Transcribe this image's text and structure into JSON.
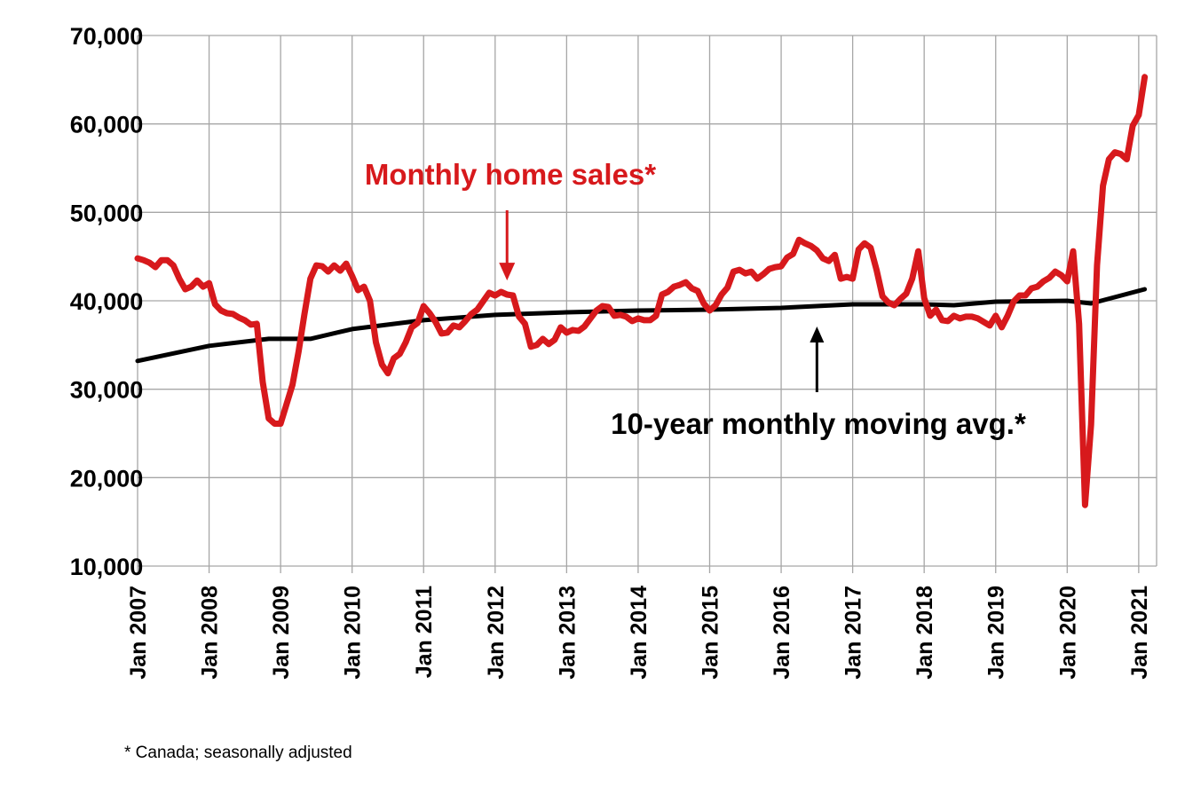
{
  "chart_data": {
    "type": "line",
    "title": "",
    "xlabel": "",
    "ylabel": "",
    "ylim": [
      10000,
      70000
    ],
    "yticks": [
      10000,
      20000,
      30000,
      40000,
      50000,
      60000,
      70000
    ],
    "ytick_labels": [
      "10,000",
      "20,000",
      "30,000",
      "40,000",
      "50,000",
      "60,000",
      "70,000"
    ],
    "xlim": [
      "2007-01",
      "2021-04"
    ],
    "xtick_labels": [
      "Jan 2007",
      "Jan 2008",
      "Jan 2009",
      "Jan 2010",
      "Jan 2011",
      "Jan 2012",
      "Jan 2013",
      "Jan 2014",
      "Jan 2015",
      "Jan 2016",
      "Jan 2017",
      "Jan 2018",
      "Jan 2019",
      "Jan 2020",
      "Jan 2021"
    ],
    "grid": true,
    "series": [
      {
        "name": "Monthly home sales*",
        "color": "#d7191c",
        "points": [
          [
            "2007-01",
            44800
          ],
          [
            "2007-02",
            44600
          ],
          [
            "2007-03",
            44300
          ],
          [
            "2007-04",
            43800
          ],
          [
            "2007-05",
            44600
          ],
          [
            "2007-06",
            44600
          ],
          [
            "2007-07",
            44000
          ],
          [
            "2007-08",
            42500
          ],
          [
            "2007-09",
            41300
          ],
          [
            "2007-10",
            41600
          ],
          [
            "2007-11",
            42300
          ],
          [
            "2007-12",
            41600
          ],
          [
            "2008-01",
            42000
          ],
          [
            "2008-02",
            39600
          ],
          [
            "2008-03",
            38900
          ],
          [
            "2008-04",
            38600
          ],
          [
            "2008-05",
            38500
          ],
          [
            "2008-06",
            38100
          ],
          [
            "2008-07",
            37800
          ],
          [
            "2008-08",
            37300
          ],
          [
            "2008-09",
            37400
          ],
          [
            "2008-10",
            30800
          ],
          [
            "2008-11",
            26700
          ],
          [
            "2008-12",
            26100
          ],
          [
            "2009-01",
            26100
          ],
          [
            "2009-02",
            28300
          ],
          [
            "2009-03",
            30500
          ],
          [
            "2009-04",
            34200
          ],
          [
            "2009-05",
            38500
          ],
          [
            "2009-06",
            42500
          ],
          [
            "2009-07",
            44000
          ],
          [
            "2009-08",
            43900
          ],
          [
            "2009-09",
            43300
          ],
          [
            "2009-10",
            44000
          ],
          [
            "2009-11",
            43400
          ],
          [
            "2009-12",
            44200
          ],
          [
            "2010-01",
            42800
          ],
          [
            "2010-02",
            41200
          ],
          [
            "2010-03",
            41600
          ],
          [
            "2010-04",
            40000
          ],
          [
            "2010-05",
            35300
          ],
          [
            "2010-06",
            32800
          ],
          [
            "2010-07",
            31800
          ],
          [
            "2010-08",
            33500
          ],
          [
            "2010-09",
            34000
          ],
          [
            "2010-10",
            35300
          ],
          [
            "2010-11",
            37000
          ],
          [
            "2010-12",
            37500
          ],
          [
            "2011-01",
            39400
          ],
          [
            "2011-02",
            38600
          ],
          [
            "2011-03",
            37600
          ],
          [
            "2011-04",
            36300
          ],
          [
            "2011-05",
            36400
          ],
          [
            "2011-06",
            37200
          ],
          [
            "2011-07",
            37000
          ],
          [
            "2011-08",
            37700
          ],
          [
            "2011-09",
            38500
          ],
          [
            "2011-10",
            39000
          ],
          [
            "2011-12",
            40900
          ],
          [
            "2012-01",
            40600
          ],
          [
            "2012-02",
            41000
          ],
          [
            "2012-03",
            40700
          ],
          [
            "2012-04",
            40600
          ],
          [
            "2012-05",
            38200
          ],
          [
            "2012-06",
            37400
          ],
          [
            "2012-07",
            34800
          ],
          [
            "2012-08",
            35000
          ],
          [
            "2012-09",
            35700
          ],
          [
            "2012-10",
            35100
          ],
          [
            "2012-11",
            35600
          ],
          [
            "2012-12",
            37000
          ],
          [
            "2013-01",
            36400
          ],
          [
            "2013-02",
            36700
          ],
          [
            "2013-03",
            36600
          ],
          [
            "2013-04",
            37100
          ],
          [
            "2013-05",
            38000
          ],
          [
            "2013-06",
            38900
          ],
          [
            "2013-07",
            39400
          ],
          [
            "2013-08",
            39300
          ],
          [
            "2013-09",
            38300
          ],
          [
            "2013-10",
            38400
          ],
          [
            "2013-11",
            38200
          ],
          [
            "2013-12",
            37700
          ],
          [
            "2014-01",
            38000
          ],
          [
            "2014-02",
            37800
          ],
          [
            "2014-03",
            37800
          ],
          [
            "2014-04",
            38300
          ],
          [
            "2014-05",
            40700
          ],
          [
            "2014-06",
            41000
          ],
          [
            "2014-07",
            41600
          ],
          [
            "2014-08",
            41800
          ],
          [
            "2014-09",
            42100
          ],
          [
            "2014-10",
            41400
          ],
          [
            "2014-11",
            41100
          ],
          [
            "2014-12",
            39700
          ],
          [
            "2015-01",
            38900
          ],
          [
            "2015-02",
            39500
          ],
          [
            "2015-03",
            40700
          ],
          [
            "2015-04",
            41500
          ],
          [
            "2015-05",
            43300
          ],
          [
            "2015-06",
            43500
          ],
          [
            "2015-07",
            43100
          ],
          [
            "2015-08",
            43300
          ],
          [
            "2015-09",
            42500
          ],
          [
            "2015-10",
            43000
          ],
          [
            "2015-11",
            43600
          ],
          [
            "2015-12",
            43800
          ],
          [
            "2016-01",
            43900
          ],
          [
            "2016-02",
            44900
          ],
          [
            "2016-03",
            45300
          ],
          [
            "2016-04",
            46900
          ],
          [
            "2016-05",
            46500
          ],
          [
            "2016-06",
            46200
          ],
          [
            "2016-07",
            45700
          ],
          [
            "2016-08",
            44800
          ],
          [
            "2016-09",
            44500
          ],
          [
            "2016-10",
            45200
          ],
          [
            "2016-11",
            42500
          ],
          [
            "2016-12",
            42700
          ],
          [
            "2017-01",
            42500
          ],
          [
            "2017-02",
            45800
          ],
          [
            "2017-03",
            46500
          ],
          [
            "2017-04",
            46000
          ],
          [
            "2017-05",
            43500
          ],
          [
            "2017-06",
            40500
          ],
          [
            "2017-07",
            39800
          ],
          [
            "2017-08",
            39500
          ],
          [
            "2017-09",
            40200
          ],
          [
            "2017-10",
            40800
          ],
          [
            "2017-11",
            42500
          ],
          [
            "2017-12",
            45600
          ],
          [
            "2018-01",
            40300
          ],
          [
            "2018-02",
            38300
          ],
          [
            "2018-03",
            39000
          ],
          [
            "2018-04",
            37800
          ],
          [
            "2018-05",
            37700
          ],
          [
            "2018-06",
            38300
          ],
          [
            "2018-07",
            38000
          ],
          [
            "2018-08",
            38200
          ],
          [
            "2018-09",
            38200
          ],
          [
            "2018-10",
            38000
          ],
          [
            "2018-11",
            37600
          ],
          [
            "2018-12",
            37200
          ],
          [
            "2019-01",
            38300
          ],
          [
            "2019-02",
            37000
          ],
          [
            "2019-03",
            38300
          ],
          [
            "2019-04",
            39900
          ],
          [
            "2019-05",
            40600
          ],
          [
            "2019-06",
            40600
          ],
          [
            "2019-07",
            41400
          ],
          [
            "2019-08",
            41600
          ],
          [
            "2019-09",
            42200
          ],
          [
            "2019-10",
            42600
          ],
          [
            "2019-11",
            43300
          ],
          [
            "2019-12",
            42900
          ],
          [
            "2020-01",
            42200
          ],
          [
            "2020-02",
            45600
          ],
          [
            "2020-03",
            37400
          ],
          [
            "2020-04",
            16900
          ],
          [
            "2020-05",
            26000
          ],
          [
            "2020-06",
            44000
          ],
          [
            "2020-07",
            53000
          ],
          [
            "2020-08",
            56000
          ],
          [
            "2020-09",
            56800
          ],
          [
            "2020-10",
            56600
          ],
          [
            "2020-11",
            56000
          ],
          [
            "2020-12",
            59800
          ],
          [
            "2021-01",
            61000
          ],
          [
            "2021-02",
            65300
          ]
        ]
      },
      {
        "name": "10-year monthly moving avg.*",
        "color": "#000000",
        "points": [
          [
            "2007-01",
            33200
          ],
          [
            "2008-01",
            34900
          ],
          [
            "2008-11",
            35700
          ],
          [
            "2009-06",
            35700
          ],
          [
            "2010-01",
            36800
          ],
          [
            "2011-01",
            37800
          ],
          [
            "2012-01",
            38400
          ],
          [
            "2013-01",
            38700
          ],
          [
            "2014-01",
            38900
          ],
          [
            "2015-01",
            39000
          ],
          [
            "2016-01",
            39200
          ],
          [
            "2017-01",
            39600
          ],
          [
            "2018-01",
            39600
          ],
          [
            "2018-06",
            39500
          ],
          [
            "2019-01",
            39900
          ],
          [
            "2020-01",
            40000
          ],
          [
            "2020-05",
            39700
          ],
          [
            "2021-02",
            41300
          ]
        ]
      }
    ],
    "annotations": [
      {
        "text": "Monthly home sales*",
        "color": "#d7191c",
        "arrow_to": [
          "2012-03",
          42300
        ]
      },
      {
        "text": "10-year monthly moving avg.*",
        "color": "#000000",
        "arrow_to": [
          "2016-07",
          39100
        ]
      }
    ],
    "footnote": "* Canada; seasonally adjusted"
  }
}
